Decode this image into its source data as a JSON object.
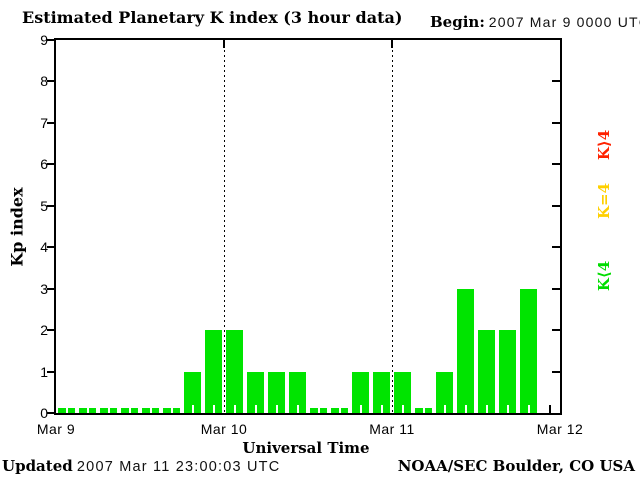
{
  "title": "Estimated Planetary K index (3 hour data)",
  "begin": {
    "label": "Begin:",
    "value": "2007 Mar 9 0000 UTC"
  },
  "y_axis": {
    "label": "Kp index",
    "ticks": [
      "0",
      "1",
      "2",
      "3",
      "4",
      "5",
      "6",
      "7",
      "8",
      "9"
    ]
  },
  "x_axis": {
    "label": "Universal Time",
    "ticks": [
      "Mar 9",
      "Mar 10",
      "Mar 11",
      "Mar 12"
    ]
  },
  "legend": [
    {
      "id": "high",
      "label": "K⟩4",
      "color": "#ff2200"
    },
    {
      "id": "mid",
      "label": "K=4",
      "color": "#ffd000"
    },
    {
      "id": "low",
      "label": "K⟨4",
      "color": "#00dd00"
    }
  ],
  "footer": {
    "updated_label": "Updated",
    "updated_value": "2007 Mar 11 23:00:03 UTC",
    "credit": "NOAA/SEC Boulder, CO USA"
  },
  "chart_data": {
    "type": "bar",
    "title": "Estimated Planetary K index (3 hour data)",
    "xlabel": "Universal Time",
    "ylabel": "Kp index",
    "ylim": [
      0,
      9
    ],
    "interval_hours": 3,
    "grid": "dotted vertical lines at day boundaries",
    "legend_position": "right, rotated",
    "colors": {
      "low": "#00e400",
      "mid": "#ffd000",
      "high": "#ff2200"
    },
    "day_categories": [
      "Mar 9",
      "Mar 10",
      "Mar 11",
      "Mar 12"
    ],
    "series": [
      {
        "day": "Mar 9",
        "values": [
          0,
          0,
          0,
          0,
          0,
          0,
          1,
          2
        ]
      },
      {
        "day": "Mar 10",
        "values": [
          2,
          1,
          1,
          1,
          0,
          0,
          1,
          1
        ]
      },
      {
        "day": "Mar 11",
        "values": [
          1,
          0,
          1,
          3,
          2,
          2,
          3,
          null
        ]
      }
    ]
  }
}
